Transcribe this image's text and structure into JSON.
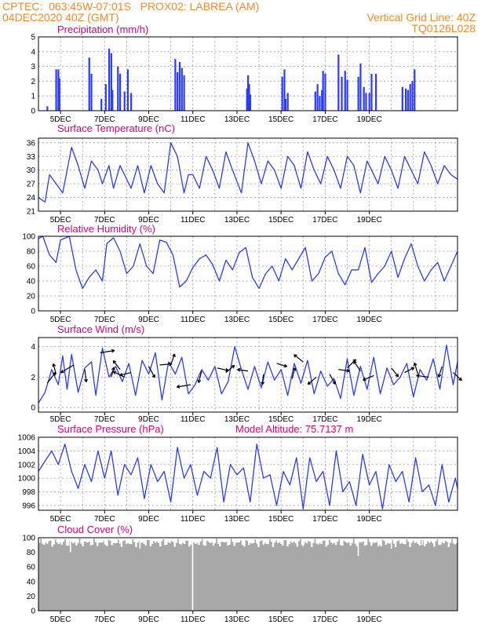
{
  "header": {
    "line1_left": "CPTEC:  063:45W-07:01S   PROX02: LABREA (AM)",
    "line2_left": "04DEC2020 40Z (GMT)",
    "line2_right": "Vertical Grid Line: 40Z",
    "line3_right": "TQ0126L028"
  },
  "colors": {
    "header": "#f08a2c",
    "title": "#e0007a",
    "series": "#2a3bff",
    "cloud": "#a8a8a8"
  },
  "x_ticks": [
    "5DEC",
    "7DEC",
    "9DEC",
    "11DEC",
    "13DEC",
    "15DEC",
    "17DEC",
    "19DEC"
  ],
  "chart_data": [
    {
      "type": "bar",
      "title": "Precipitation (mm/h)",
      "ylim": [
        0,
        5
      ],
      "yticks": [
        0,
        1,
        2,
        3,
        4,
        5
      ],
      "values": [
        [
          0.4,
          0.3
        ],
        [
          0.8,
          2.8
        ],
        [
          0.9,
          2.8
        ],
        [
          0.95,
          2.2
        ],
        [
          2.3,
          3.6
        ],
        [
          2.4,
          2.5
        ],
        [
          2.85,
          0.8
        ],
        [
          3.05,
          1.8
        ],
        [
          3.2,
          4.2
        ],
        [
          3.3,
          3.9
        ],
        [
          3.35,
          1.4
        ],
        [
          3.6,
          3.0
        ],
        [
          3.7,
          2.5
        ],
        [
          3.9,
          1.3
        ],
        [
          4.05,
          2.8
        ],
        [
          4.2,
          1.2
        ],
        [
          6.2,
          3.5
        ],
        [
          6.3,
          2.6
        ],
        [
          6.4,
          3.3
        ],
        [
          6.5,
          2.9
        ],
        [
          6.6,
          2.4
        ],
        [
          9.45,
          1.5
        ],
        [
          9.5,
          2.4
        ],
        [
          9.55,
          1.8
        ],
        [
          9.6,
          1.1
        ],
        [
          11.05,
          2.3
        ],
        [
          11.15,
          2.8
        ],
        [
          11.2,
          0.8
        ],
        [
          11.3,
          1.2
        ],
        [
          12.55,
          1.3
        ],
        [
          12.65,
          1.8
        ],
        [
          12.75,
          1.0
        ],
        [
          12.85,
          1.4
        ],
        [
          12.9,
          2.7
        ],
        [
          13.0,
          2.5
        ],
        [
          13.6,
          3.8
        ],
        [
          13.75,
          2.3
        ],
        [
          13.9,
          2.7
        ],
        [
          14.0,
          2.1
        ],
        [
          14.5,
          2.3
        ],
        [
          14.6,
          3.2
        ],
        [
          14.75,
          1.6
        ],
        [
          14.85,
          1.2
        ],
        [
          15.0,
          1.2
        ],
        [
          15.1,
          2.5
        ],
        [
          15.3,
          2.5
        ],
        [
          16.5,
          1.6
        ],
        [
          16.65,
          1.5
        ],
        [
          16.75,
          1.4
        ],
        [
          16.85,
          1.8
        ],
        [
          16.95,
          2.0
        ],
        [
          17.05,
          2.8
        ]
      ]
    },
    {
      "type": "line",
      "title": "Surface Temperature (nC)",
      "ylim": [
        21,
        37
      ],
      "yticks": [
        21,
        24,
        27,
        30,
        33,
        36
      ],
      "x": [
        0,
        0.3,
        0.5,
        0.8,
        1.1,
        1.5,
        1.8,
        2.1,
        2.4,
        2.7,
        2.9,
        3.2,
        3.4,
        3.7,
        3.9,
        4.2,
        4.5,
        4.8,
        5.1,
        5.4,
        5.7,
        6.0,
        6.3,
        6.6,
        6.8,
        7.0,
        7.3,
        7.6,
        7.9,
        8.2,
        8.5,
        8.8,
        9.2,
        9.5,
        9.8,
        10.1,
        10.4,
        10.7,
        11.0,
        11.3,
        11.6,
        11.9,
        12.2,
        12.5,
        12.8,
        13.1,
        13.4,
        13.7,
        14.0,
        14.3,
        14.6,
        14.9,
        15.1,
        15.4,
        15.7,
        16.0,
        16.3,
        16.6,
        16.9,
        17.2,
        17.5,
        17.8,
        18.1,
        18.4,
        18.7,
        19.0
      ],
      "values": [
        24,
        23,
        29,
        27,
        25,
        35,
        31,
        26,
        32,
        30,
        27,
        31,
        26,
        31,
        29,
        26,
        31,
        25,
        31,
        27,
        25,
        36,
        33,
        25,
        29,
        29,
        26,
        33,
        30,
        26,
        34,
        30,
        25,
        36,
        32,
        27,
        32,
        30,
        26,
        33,
        31,
        26,
        34,
        30,
        27,
        33,
        30,
        26,
        33,
        31,
        25,
        32,
        30,
        27,
        33,
        30,
        26,
        33,
        30,
        27,
        34,
        31,
        27,
        31,
        29,
        28
      ]
    },
    {
      "type": "line",
      "title": "Relative Humidity (%)",
      "ylim": [
        0,
        100
      ],
      "yticks": [
        0,
        20,
        40,
        60,
        80,
        100
      ],
      "x": [
        0,
        0.2,
        0.5,
        0.8,
        1.0,
        1.4,
        1.7,
        2.0,
        2.3,
        2.6,
        2.9,
        3.1,
        3.4,
        3.7,
        4.0,
        4.3,
        4.6,
        4.9,
        5.2,
        5.5,
        5.8,
        6.1,
        6.4,
        6.7,
        7.0,
        7.3,
        7.6,
        7.9,
        8.2,
        8.5,
        8.8,
        9.1,
        9.4,
        9.7,
        10.0,
        10.3,
        10.6,
        10.9,
        11.2,
        11.5,
        11.8,
        12.1,
        12.4,
        12.7,
        13.0,
        13.3,
        13.6,
        13.9,
        14.2,
        14.5,
        14.8,
        15.1,
        15.4,
        15.7,
        16.0,
        16.3,
        16.6,
        16.9,
        17.2,
        17.5,
        17.8,
        18.1,
        18.4,
        18.7,
        19.0
      ],
      "values": [
        97,
        100,
        75,
        65,
        95,
        100,
        55,
        30,
        45,
        55,
        40,
        90,
        98,
        80,
        50,
        60,
        90,
        60,
        50,
        95,
        92,
        75,
        32,
        40,
        58,
        70,
        75,
        62,
        40,
        68,
        55,
        78,
        85,
        45,
        30,
        50,
        60,
        40,
        70,
        55,
        70,
        85,
        40,
        50,
        72,
        80,
        50,
        35,
        55,
        55,
        85,
        38,
        50,
        60,
        80,
        45,
        70,
        90,
        60,
        40,
        55,
        65,
        40,
        60,
        80
      ]
    },
    {
      "type": "line",
      "title": "Surface Wind (m/s)",
      "ylim": [
        -0.3,
        4.6
      ],
      "yticks": [
        0,
        2,
        4
      ],
      "x": [
        0,
        0.3,
        0.6,
        0.9,
        1.1,
        1.3,
        1.5,
        1.8,
        2.1,
        2.4,
        2.6,
        2.9,
        3.2,
        3.5,
        3.8,
        4.1,
        4.4,
        4.7,
        5.0,
        5.3,
        5.6,
        5.9,
        6.2,
        6.5,
        6.8,
        7.1,
        7.4,
        7.7,
        8.0,
        8.3,
        8.6,
        8.9,
        9.2,
        9.5,
        9.8,
        10.1,
        10.4,
        10.7,
        11.0,
        11.3,
        11.6,
        11.9,
        12.2,
        12.5,
        12.8,
        13.1,
        13.4,
        13.7,
        14.0,
        14.3,
        14.6,
        14.9,
        15.2,
        15.5,
        15.8,
        16.1,
        16.4,
        16.7,
        17.0,
        17.3,
        17.6,
        17.9,
        18.2,
        18.5,
        18.8,
        19.0
      ],
      "values": [
        0.3,
        1.0,
        2.5,
        1.5,
        3.4,
        1.2,
        3.5,
        1.0,
        2.6,
        3.0,
        0.8,
        3.9,
        2.0,
        2.7,
        1.7,
        2.9,
        0.8,
        3.1,
        2.2,
        3.6,
        0.5,
        3.0,
        2.2,
        3.3,
        0.9,
        1.5,
        2.5,
        1.8,
        2.7,
        0.9,
        1.7,
        4.0,
        2.5,
        1.2,
        2.7,
        1.3,
        3.0,
        1.8,
        2.5,
        0.8,
        2.9,
        1.6,
        3.1,
        0.9,
        2.4,
        1.4,
        1.9,
        0.6,
        3.2,
        0.8,
        2.7,
        1.2,
        3.3,
        0.9,
        2.6,
        1.5,
        2.0,
        2.9,
        0.7,
        2.5,
        1.8,
        3.2,
        1.2,
        4.1,
        1.5,
        3.0
      ],
      "barbs": [
        [
          0.4,
          1.6,
          1.2
        ],
        [
          0.8,
          2.2,
          0.6
        ],
        [
          1.6,
          2.8,
          1.5
        ],
        [
          2.1,
          2.5,
          1.0
        ],
        [
          2.8,
          3.6,
          1.4
        ],
        [
          3.3,
          2.0,
          0.5
        ],
        [
          3.7,
          2.5,
          0.7
        ],
        [
          3.9,
          2.0,
          1.0
        ],
        [
          4.2,
          2.3,
          0.8
        ],
        [
          5.0,
          2.7,
          1.0
        ],
        [
          5.5,
          2.8,
          0.9
        ],
        [
          6.0,
          2.8,
          0.8
        ],
        [
          6.9,
          1.5,
          1.3
        ],
        [
          7.4,
          2.4,
          0.9
        ],
        [
          8.1,
          2.6,
          0.8
        ],
        [
          8.5,
          2.3,
          0.7
        ],
        [
          9.5,
          2.4,
          0.6
        ],
        [
          10.2,
          2.2,
          0.6
        ],
        [
          10.8,
          2.9,
          0.6
        ],
        [
          11.5,
          1.9,
          0.7
        ],
        [
          12.0,
          3.0,
          0.8
        ],
        [
          12.6,
          2.0,
          0.7
        ],
        [
          13.2,
          2.2,
          0.8
        ],
        [
          13.6,
          2.5,
          0.7
        ],
        [
          14.0,
          2.6,
          0.9
        ],
        [
          14.6,
          2.4,
          0.9
        ],
        [
          15.2,
          2.1,
          0.8
        ],
        [
          16.0,
          2.6,
          0.7
        ],
        [
          16.6,
          2.3,
          0.6
        ],
        [
          17.2,
          2.2,
          0.8
        ],
        [
          17.7,
          2.0,
          1.0
        ],
        [
          18.3,
          2.7,
          0.7
        ],
        [
          18.8,
          2.3,
          0.8
        ]
      ]
    },
    {
      "type": "line",
      "title": "Surface Pressure (hPa)",
      "annotation": "Model Altitude: 75.7137 m",
      "ylim": [
        995.3,
        1006
      ],
      "yticks": [
        996,
        998,
        1000,
        1002,
        1004,
        1006
      ],
      "x": [
        0,
        0.3,
        0.6,
        0.9,
        1.2,
        1.5,
        1.8,
        2.1,
        2.4,
        2.7,
        3.0,
        3.3,
        3.6,
        3.9,
        4.2,
        4.5,
        4.8,
        5.1,
        5.4,
        5.7,
        6.0,
        6.3,
        6.6,
        6.9,
        7.2,
        7.5,
        7.8,
        8.1,
        8.4,
        8.7,
        9.0,
        9.3,
        9.6,
        9.9,
        10.2,
        10.5,
        10.8,
        11.1,
        11.4,
        11.7,
        12.0,
        12.3,
        12.6,
        12.9,
        13.2,
        13.5,
        13.8,
        14.1,
        14.4,
        14.7,
        15.0,
        15.3,
        15.6,
        15.9,
        16.2,
        16.5,
        16.8,
        17.1,
        17.4,
        17.7,
        18.0,
        18.3,
        18.6,
        18.9,
        19.0
      ],
      "values": [
        1001,
        1002.5,
        1004,
        1002,
        1005,
        1001,
        998.5,
        1002,
        999.5,
        1004,
        1000,
        1004,
        997.5,
        1002,
        1000.5,
        1003,
        997,
        1002,
        999.5,
        1001,
        996.5,
        1004.5,
        1000,
        1002,
        997.5,
        1001,
        1000,
        1004.5,
        996.5,
        1002,
        1000.5,
        1001.5,
        996.5,
        1005,
        1000,
        1000.5,
        996,
        1001,
        999,
        1003,
        995.5,
        1003,
        999.5,
        1001,
        996,
        1004,
        998,
        999.5,
        996,
        1003.5,
        999,
        1001,
        995.5,
        1002,
        999.5,
        1001,
        996.5,
        1003,
        998,
        999,
        996,
        1002,
        996.5,
        1000,
        998.5
      ]
    },
    {
      "type": "bar",
      "title": "Cloud Cover (%)",
      "ylim": [
        0,
        100
      ],
      "yticks": [
        0,
        20,
        40,
        60,
        80,
        100
      ],
      "values_note": "near-100% cover with narrow gaps",
      "gaps": [
        [
          6.99,
          0
        ],
        [
          1.45,
          80
        ],
        [
          4.6,
          85
        ],
        [
          9.35,
          88
        ],
        [
          10.2,
          90
        ],
        [
          14.5,
          75
        ],
        [
          15.4,
          88
        ],
        [
          16.0,
          85
        ],
        [
          17.4,
          90
        ],
        [
          18.2,
          90
        ],
        [
          3.0,
          92
        ],
        [
          12.0,
          88
        ]
      ]
    }
  ]
}
